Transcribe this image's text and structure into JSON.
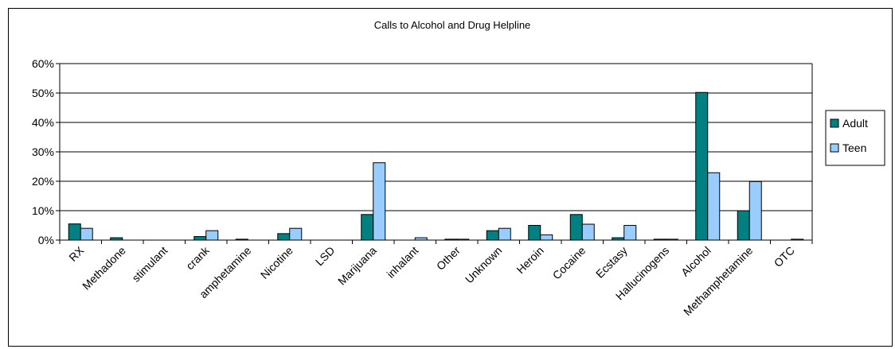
{
  "chart_data": {
    "type": "bar",
    "title": "Calls to Alcohol and Drug Helpline",
    "xlabel": "",
    "ylabel": "",
    "ylim": [
      0,
      60
    ],
    "yticks": [
      "0%",
      "10%",
      "20%",
      "30%",
      "40%",
      "50%",
      "60%"
    ],
    "grid": true,
    "legend_position": "right",
    "categories": [
      "RX",
      "Methadone",
      "stimulant",
      "crank",
      "amphetamine",
      "Nicotine",
      "LSD",
      "Marijuana",
      "inhalant",
      "Other",
      "Unknown",
      "Heroin",
      "Cocaine",
      "Ecstasy",
      "Hallucinogens",
      "Alcohol",
      "Methamphetamine",
      "OTC"
    ],
    "series": [
      {
        "name": "Adult",
        "color": "#008080",
        "values": [
          5.5,
          0.8,
          0,
          1.2,
          0.3,
          2.2,
          0,
          8.7,
          0,
          0.3,
          3.2,
          5,
          8.7,
          0.8,
          0.3,
          50.2,
          10,
          0
        ]
      },
      {
        "name": "Teen",
        "color": "#99CCFF",
        "values": [
          4,
          0,
          0,
          3.2,
          0,
          4,
          0,
          26.3,
          0.8,
          0.3,
          4,
          1.8,
          5.4,
          5,
          0.3,
          22.9,
          19.9,
          0.3
        ]
      }
    ]
  }
}
